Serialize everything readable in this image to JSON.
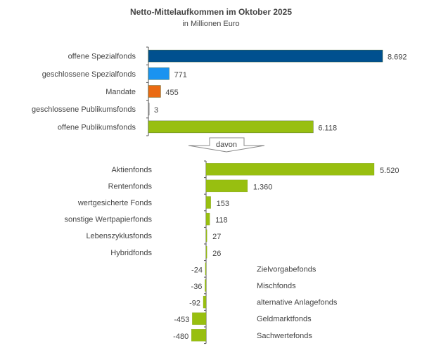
{
  "chart_data": [
    {
      "type": "bar",
      "orientation": "horizontal",
      "title": "Netto-Mittelaufkommen im Oktober 2025",
      "subtitle": "in Millionen Euro",
      "categories": [
        "offene Spezialfonds",
        "geschlossene Spezialfonds",
        "Mandate",
        "geschlossene Publikumsfonds",
        "offene Publikumsfonds"
      ],
      "values": [
        8692,
        771,
        455,
        3,
        6118
      ],
      "value_labels": [
        "8.692",
        "771",
        "455",
        "3",
        "6.118"
      ],
      "colors": [
        "#00508f",
        "#1a93f0",
        "#ea6a12",
        "#ffffff",
        "#98bf10"
      ],
      "xlim": [
        0,
        8692
      ]
    },
    {
      "type": "bar",
      "orientation": "horizontal",
      "connector_label": "davon",
      "categories": [
        "Aktienfonds",
        "Rentenfonds",
        "wertgesicherte Fonds",
        "sonstige Wertpapierfonds",
        "Lebenszyklusfonds",
        "Hybridfonds",
        "Zielvorgabefonds",
        "Mischfonds",
        "alternative Anlagefonds",
        "Geldmarktfonds",
        "Sachwertefonds"
      ],
      "values": [
        5520,
        1360,
        153,
        118,
        27,
        26,
        -24,
        -36,
        -92,
        -453,
        -480
      ],
      "value_labels": [
        "5.520",
        "1.360",
        "153",
        "118",
        "27",
        "26",
        "-24",
        "-36",
        "-92",
        "-453",
        "-480"
      ],
      "color": "#98bf10",
      "xlim": [
        -480,
        5520
      ]
    }
  ]
}
